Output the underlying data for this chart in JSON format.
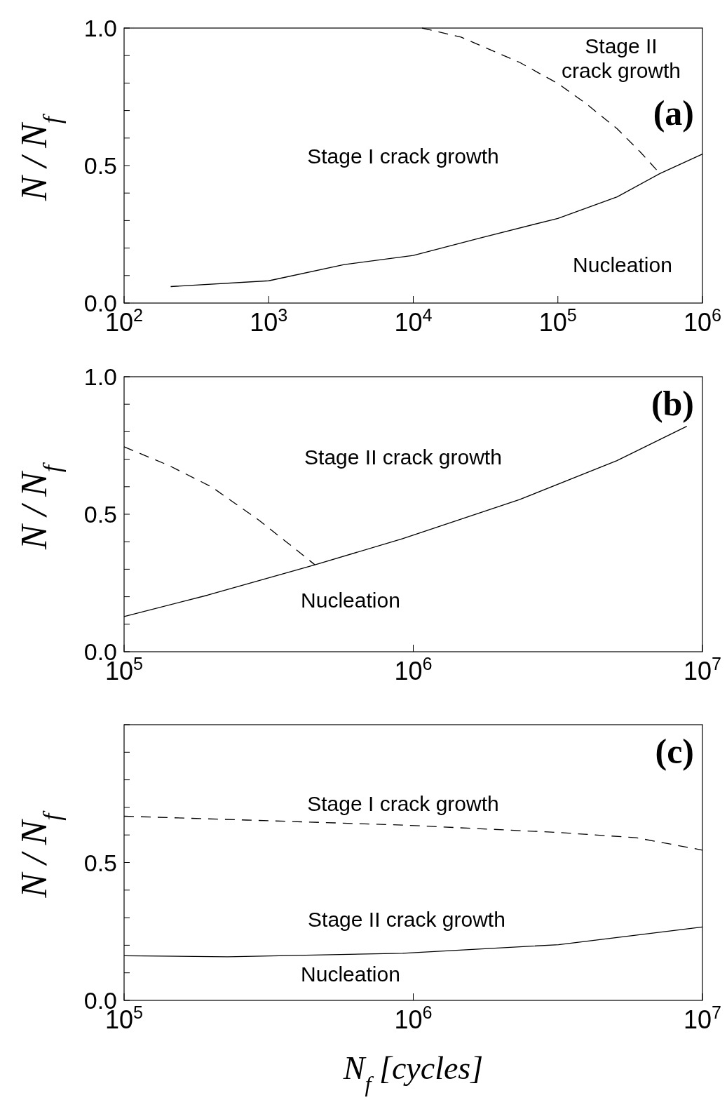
{
  "chart_data": [
    {
      "type": "line",
      "title": "(a)",
      "ylabel": "N / N$_{f}$",
      "log": "x",
      "xlim": [
        100,
        1000000
      ],
      "ylim": [
        0,
        1
      ],
      "xticks": [
        {
          "value": 100,
          "label": "10$^{2}$"
        },
        {
          "value": 1000,
          "label": "10$^{3}$"
        },
        {
          "value": 10000,
          "label": "10$^{4}$"
        },
        {
          "value": 100000,
          "label": "10$^{5}$"
        },
        {
          "value": 1000000,
          "label": "10$^{6}$"
        }
      ],
      "yticks": [
        {
          "value": 0,
          "label": "0.0"
        },
        {
          "value": 0.1,
          "label": null
        },
        {
          "value": 0.2,
          "label": null
        },
        {
          "value": 0.3,
          "label": null
        },
        {
          "value": 0.4,
          "label": null
        },
        {
          "value": 0.5,
          "label": "0.5"
        },
        {
          "value": 0.6,
          "label": null
        },
        {
          "value": 0.7,
          "label": null
        },
        {
          "value": 0.8,
          "label": null
        },
        {
          "value": 0.9,
          "label": null
        },
        {
          "value": 1,
          "label": "1.0"
        }
      ],
      "marker": "none",
      "series": [
        {
          "color": "#000000",
          "line_style": "solid",
          "x": [
            210,
            1000,
            3330,
            10000,
            29200,
            100000,
            257000,
            508000,
            1000000
          ],
          "values": [
            0.06,
            0.081,
            0.14,
            0.173,
            0.237,
            0.308,
            0.386,
            0.471,
            0.542
          ]
        },
        {
          "color": "#000000",
          "line_style": "dashed",
          "x": [
            11500,
            21400,
            54500,
            101000,
            156000,
            257000,
            372000,
            508000
          ],
          "values": [
            1.0,
            0.967,
            0.875,
            0.797,
            0.726,
            0.634,
            0.549,
            0.471
          ]
        }
      ],
      "annotations": [
        "Stage I crack growth",
        "Stage II\ncrack growth",
        "Nucleation"
      ]
    },
    {
      "type": "line",
      "title": "(b)",
      "ylabel": "N / N$_{f}$",
      "log": "x",
      "xlim": [
        100000,
        10000000
      ],
      "ylim": [
        0,
        1
      ],
      "xticks": [
        {
          "value": 100000,
          "label": "10$^{5}$"
        },
        {
          "value": 1000000,
          "label": "10$^{6}$"
        },
        {
          "value": 10000000,
          "label": "10$^{7}$"
        }
      ],
      "yticks": [
        {
          "value": 0,
          "label": "0.0"
        },
        {
          "value": 0.1,
          "label": null
        },
        {
          "value": 0.2,
          "label": null
        },
        {
          "value": 0.3,
          "label": null
        },
        {
          "value": 0.4,
          "label": null
        },
        {
          "value": 0.5,
          "label": "0.5"
        },
        {
          "value": 0.6,
          "label": null
        },
        {
          "value": 0.7,
          "label": null
        },
        {
          "value": 0.8,
          "label": null
        },
        {
          "value": 0.9,
          "label": null
        },
        {
          "value": 1,
          "label": "1.0"
        }
      ],
      "marker": "none",
      "series": [
        {
          "color": "#000000",
          "line_style": "solid",
          "x": [
            100000,
            195000,
            457000,
            918000,
            2330000,
            5060000,
            8830000
          ],
          "values": [
            0.128,
            0.206,
            0.316,
            0.411,
            0.553,
            0.695,
            0.82
          ]
        },
        {
          "color": "#000000",
          "line_style": "dashed",
          "x": [
            100000,
            143000,
            201000,
            292000,
            385000,
            457000
          ],
          "values": [
            0.745,
            0.677,
            0.599,
            0.479,
            0.379,
            0.316
          ]
        }
      ],
      "annotations": [
        "Stage II crack growth",
        "Nucleation"
      ]
    },
    {
      "type": "line",
      "title": "(c)",
      "ylabel": "N / N$_{f}$",
      "xlabel": "N$_{f}$  [cycles]",
      "log": "x",
      "xlim": [
        100000,
        10000000
      ],
      "ylim": [
        0,
        1
      ],
      "xticks": [
        {
          "value": 100000,
          "label": "10$^{5}$"
        },
        {
          "value": 1000000,
          "label": "10$^{6}$"
        },
        {
          "value": 10000000,
          "label": "10$^{7}$"
        }
      ],
      "yticks": [
        {
          "value": 0,
          "label": "0.0"
        },
        {
          "value": 0.1,
          "label": null
        },
        {
          "value": 0.2,
          "label": null
        },
        {
          "value": 0.3,
          "label": null
        },
        {
          "value": 0.4,
          "label": null
        },
        {
          "value": 0.5,
          "label": "0.5"
        },
        {
          "value": 0.6,
          "label": null
        },
        {
          "value": 0.7,
          "label": null
        },
        {
          "value": 0.8,
          "label": null
        },
        {
          "value": 0.9,
          "label": null
        },
        {
          "value": 1,
          "label": null
        }
      ],
      "marker": "none",
      "series": [
        {
          "color": "#000000",
          "line_style": "solid",
          "x": [
            100000,
            228000,
            918000,
            3180000,
            10000000
          ],
          "values": [
            0.162,
            0.158,
            0.171,
            0.202,
            0.266
          ]
        },
        {
          "color": "#000000",
          "line_style": "dashed",
          "x": [
            100000,
            266000,
            918000,
            3180000,
            5900000,
            10000000
          ],
          "values": [
            0.668,
            0.654,
            0.636,
            0.609,
            0.59,
            0.545
          ]
        }
      ],
      "annotations": [
        "Stage I crack growth",
        "Stage II crack growth",
        "Nucleation"
      ]
    }
  ]
}
